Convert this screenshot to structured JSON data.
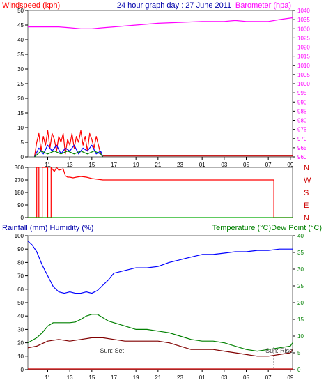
{
  "chart_data": [
    {
      "type": "line",
      "title": "24 hour graph day : 27 June 2011",
      "left_axis": {
        "label": "Windspeed (kph)",
        "ticks": [
          0,
          5,
          10,
          15,
          20,
          25,
          30,
          35,
          40,
          45,
          50
        ],
        "range": [
          0,
          50
        ],
        "color": "#ff0000"
      },
      "right_axis": {
        "label": "Barometer (hpa)",
        "ticks": [
          960,
          965,
          970,
          975,
          980,
          985,
          990,
          995,
          1000,
          1005,
          1010,
          1015,
          1020,
          1025,
          1030,
          1035,
          1040
        ],
        "range": [
          960,
          1040
        ],
        "color": "#ff00ff"
      },
      "x_ticks": [
        "11",
        "13",
        "15",
        "17",
        "19",
        "21",
        "23",
        "01",
        "03",
        "05",
        "07",
        "09"
      ],
      "x_range": [
        9.2,
        33.2
      ],
      "series": [
        {
          "role": "barometer",
          "axis": "right",
          "color": "#ff00ff",
          "points": [
            [
              9.2,
              1031
            ],
            [
              11,
              1031
            ],
            [
              12,
              1031
            ],
            [
              13,
              1030.5
            ],
            [
              14,
              1030
            ],
            [
              15,
              1030
            ],
            [
              16,
              1030.5
            ],
            [
              17,
              1031
            ],
            [
              19,
              1032
            ],
            [
              21,
              1033
            ],
            [
              23,
              1033.5
            ],
            [
              25,
              1034
            ],
            [
              27,
              1034
            ],
            [
              28,
              1034.5
            ],
            [
              29,
              1034
            ],
            [
              31,
              1034
            ],
            [
              32,
              1035
            ],
            [
              33.2,
              1036
            ]
          ]
        },
        {
          "role": "wind-gust",
          "axis": "left",
          "color": "#ff0000",
          "points": [
            [
              9.8,
              0
            ],
            [
              10,
              5
            ],
            [
              10.2,
              8
            ],
            [
              10.4,
              2
            ],
            [
              10.6,
              7
            ],
            [
              10.8,
              4
            ],
            [
              11,
              9
            ],
            [
              11.2,
              3
            ],
            [
              11.4,
              8
            ],
            [
              11.6,
              6
            ],
            [
              11.8,
              2
            ],
            [
              12,
              7
            ],
            [
              12.2,
              5
            ],
            [
              12.4,
              8
            ],
            [
              12.6,
              1
            ],
            [
              12.8,
              6
            ],
            [
              13,
              4
            ],
            [
              13.2,
              8
            ],
            [
              13.4,
              3
            ],
            [
              13.6,
              7
            ],
            [
              13.8,
              5
            ],
            [
              14,
              9
            ],
            [
              14.2,
              4
            ],
            [
              14.4,
              7
            ],
            [
              14.6,
              2
            ],
            [
              14.8,
              8
            ],
            [
              15,
              6
            ],
            [
              15.2,
              3
            ],
            [
              15.4,
              7
            ],
            [
              15.6,
              4
            ],
            [
              15.8,
              1
            ],
            [
              16,
              0
            ]
          ]
        },
        {
          "role": "wind-avg",
          "axis": "left",
          "color": "#0000ff",
          "points": [
            [
              9.8,
              0
            ],
            [
              10.2,
              3
            ],
            [
              10.6,
              1
            ],
            [
              11,
              4
            ],
            [
              11.4,
              2
            ],
            [
              11.8,
              4
            ],
            [
              12.2,
              1
            ],
            [
              12.6,
              3
            ],
            [
              13,
              2
            ],
            [
              13.4,
              4
            ],
            [
              13.8,
              1
            ],
            [
              14.2,
              3
            ],
            [
              14.6,
              2
            ],
            [
              15,
              4
            ],
            [
              15.4,
              1
            ],
            [
              15.8,
              2
            ],
            [
              16,
              0
            ]
          ]
        },
        {
          "role": "wind-low",
          "axis": "left",
          "color": "#008000",
          "points": [
            [
              9.8,
              0
            ],
            [
              10.4,
              2
            ],
            [
              11,
              1
            ],
            [
              11.6,
              2
            ],
            [
              12.2,
              1
            ],
            [
              12.8,
              2
            ],
            [
              13.4,
              1
            ],
            [
              14,
              2
            ],
            [
              14.6,
              1
            ],
            [
              15.2,
              2
            ],
            [
              15.8,
              1
            ],
            [
              16,
              0
            ]
          ]
        },
        {
          "role": "wind-baseline",
          "axis": "left",
          "color": "#c00000",
          "points": [
            [
              16,
              0.3
            ],
            [
              33.2,
              0.3
            ]
          ]
        }
      ]
    },
    {
      "type": "line",
      "left_axis": {
        "ticks": [
          0,
          90,
          180,
          270,
          360
        ],
        "range": [
          0,
          360
        ],
        "color": "#ff0000"
      },
      "right_labels": [
        "N",
        "W",
        "S",
        "E",
        "N"
      ],
      "x_range": [
        9.2,
        33.2
      ],
      "series": [
        {
          "role": "wind-direction",
          "color": "#ff0000",
          "points": [
            [
              9.2,
              0
            ],
            [
              10,
              0
            ],
            [
              10,
              360
            ],
            [
              10.2,
              360
            ],
            [
              10.2,
              0
            ],
            [
              10.5,
              0
            ],
            [
              10.5,
              360
            ],
            [
              11,
              360
            ],
            [
              11,
              0
            ],
            [
              11.3,
              0
            ],
            [
              11.3,
              360
            ],
            [
              11.6,
              330
            ],
            [
              11.8,
              360
            ],
            [
              12,
              340
            ],
            [
              12.2,
              345
            ],
            [
              12.4,
              350
            ],
            [
              12.6,
              300
            ],
            [
              12.8,
              290
            ],
            [
              13,
              290
            ],
            [
              13.3,
              285
            ],
            [
              13.6,
              290
            ],
            [
              14,
              295
            ],
            [
              14.5,
              290
            ],
            [
              15,
              280
            ],
            [
              15.5,
              275
            ],
            [
              16,
              270
            ],
            [
              18,
              270
            ],
            [
              24,
              270
            ],
            [
              31.5,
              270
            ],
            [
              31.5,
              0
            ],
            [
              33.2,
              0
            ]
          ]
        },
        {
          "role": "direction-baseline",
          "color": "#00aa00",
          "points": [
            [
              9.2,
              0
            ],
            [
              33.2,
              0
            ]
          ]
        }
      ]
    },
    {
      "type": "line",
      "left_axis": {
        "label": "Rainfall (mm)  Humidity (%)",
        "ticks": [
          0,
          10,
          20,
          30,
          40,
          50,
          60,
          70,
          80,
          90,
          100
        ],
        "range": [
          0,
          100
        ],
        "color": "#0000ff"
      },
      "right_axis": {
        "label": "Temperature (°C)Dew Point (°C)",
        "ticks": [
          0,
          5,
          10,
          15,
          20,
          25,
          30,
          35,
          40
        ],
        "range": [
          0,
          40
        ],
        "color": "#008000"
      },
      "x_ticks": [
        "11",
        "13",
        "15",
        "17",
        "19",
        "21",
        "23",
        "01",
        "03",
        "05",
        "07",
        "09"
      ],
      "x_range": [
        9.2,
        33.2
      ],
      "annotations": [
        {
          "text": "Sun: Set",
          "x": 17
        },
        {
          "text": "Sun: Rise",
          "x": 31.5
        }
      ],
      "series": [
        {
          "role": "humidity",
          "axis": "left",
          "color": "#0000ff",
          "points": [
            [
              9.2,
              96
            ],
            [
              9.6,
              93
            ],
            [
              10,
              88
            ],
            [
              10.5,
              78
            ],
            [
              11,
              70
            ],
            [
              11.5,
              62
            ],
            [
              12,
              58
            ],
            [
              12.5,
              57
            ],
            [
              13,
              58
            ],
            [
              13.5,
              57
            ],
            [
              14,
              57
            ],
            [
              14.5,
              58
            ],
            [
              15,
              57
            ],
            [
              15.5,
              59
            ],
            [
              16,
              63
            ],
            [
              16.5,
              67
            ],
            [
              17,
              72
            ],
            [
              18,
              74
            ],
            [
              19,
              76
            ],
            [
              20,
              76
            ],
            [
              21,
              77
            ],
            [
              22,
              80
            ],
            [
              22.5,
              81
            ],
            [
              23,
              82
            ],
            [
              23.5,
              83
            ],
            [
              24,
              84
            ],
            [
              25,
              86
            ],
            [
              26,
              86
            ],
            [
              27,
              87
            ],
            [
              28,
              88
            ],
            [
              29,
              88
            ],
            [
              30,
              89
            ],
            [
              31,
              89
            ],
            [
              32,
              90
            ],
            [
              33.2,
              90
            ]
          ]
        },
        {
          "role": "temperature",
          "axis": "right",
          "color": "#008000",
          "points": [
            [
              9.2,
              8
            ],
            [
              10,
              9.5
            ],
            [
              10.5,
              11
            ],
            [
              11,
              13
            ],
            [
              11.5,
              14
            ],
            [
              12,
              14
            ],
            [
              13,
              14
            ],
            [
              13.5,
              14.2
            ],
            [
              14,
              15
            ],
            [
              14.5,
              16
            ],
            [
              15,
              16.5
            ],
            [
              15.5,
              16.5
            ],
            [
              16,
              15.5
            ],
            [
              16.5,
              14.5
            ],
            [
              17,
              14
            ],
            [
              18,
              13
            ],
            [
              19,
              12
            ],
            [
              20,
              12
            ],
            [
              21,
              11.5
            ],
            [
              22,
              11
            ],
            [
              23,
              10
            ],
            [
              24,
              9
            ],
            [
              25,
              8.5
            ],
            [
              26,
              8.5
            ],
            [
              27,
              8
            ],
            [
              28,
              7
            ],
            [
              29,
              6
            ],
            [
              30,
              5.5
            ],
            [
              31,
              6
            ],
            [
              32,
              6.5
            ],
            [
              33,
              7
            ],
            [
              33.2,
              8
            ]
          ]
        },
        {
          "role": "dew-point",
          "axis": "right",
          "color": "#800000",
          "points": [
            [
              9.2,
              6.5
            ],
            [
              10,
              7
            ],
            [
              11,
              8.5
            ],
            [
              12,
              9
            ],
            [
              13,
              8.5
            ],
            [
              14,
              9
            ],
            [
              15,
              9.5
            ],
            [
              16,
              9.5
            ],
            [
              17,
              9
            ],
            [
              18,
              8.5
            ],
            [
              19,
              8.5
            ],
            [
              20,
              8.5
            ],
            [
              21,
              8.5
            ],
            [
              22,
              8
            ],
            [
              23,
              7
            ],
            [
              24,
              6
            ],
            [
              25,
              6
            ],
            [
              26,
              6
            ],
            [
              27,
              5.5
            ],
            [
              28,
              5
            ],
            [
              29,
              4.5
            ],
            [
              30,
              4
            ],
            [
              31,
              4
            ],
            [
              32,
              4.5
            ],
            [
              33,
              5
            ],
            [
              33.2,
              6
            ]
          ]
        },
        {
          "role": "rainfall",
          "axis": "left",
          "color": "#cc0000",
          "points": [
            [
              9.2,
              0.5
            ],
            [
              33.2,
              0.5
            ]
          ]
        }
      ]
    }
  ]
}
